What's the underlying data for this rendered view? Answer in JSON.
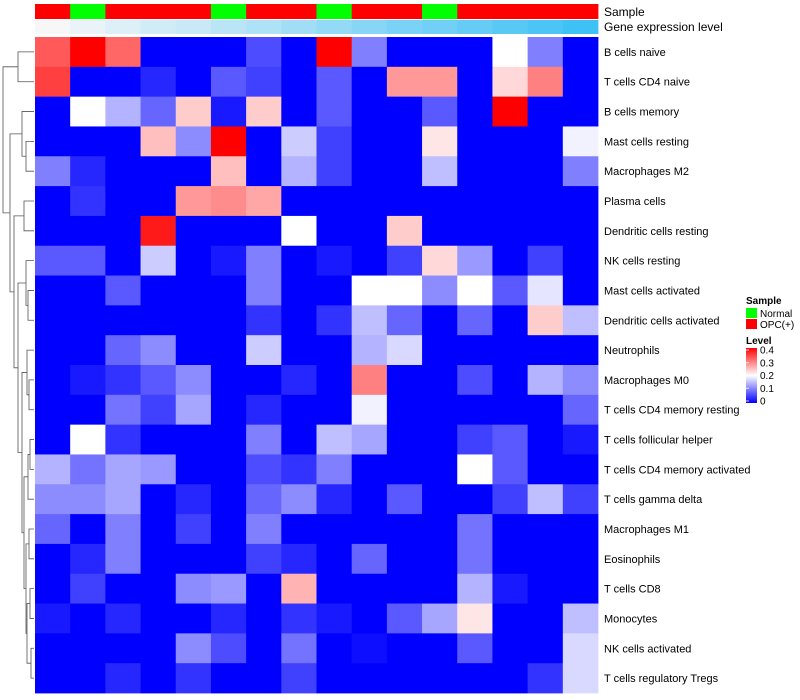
{
  "chart_data": {
    "type": "heatmap",
    "title": "",
    "annotation_labels": {
      "sample": "Sample",
      "gene_expression": "Gene expression level"
    },
    "columns": [
      {
        "sample": "OPC(+)",
        "expression_level": 0.0
      },
      {
        "sample": "Normal",
        "expression_level": 0.03
      },
      {
        "sample": "OPC(+)",
        "expression_level": 0.06
      },
      {
        "sample": "OPC(+)",
        "expression_level": 0.09
      },
      {
        "sample": "OPC(+)",
        "expression_level": 0.11
      },
      {
        "sample": "Normal",
        "expression_level": 0.14
      },
      {
        "sample": "OPC(+)",
        "expression_level": 0.17
      },
      {
        "sample": "OPC(+)",
        "expression_level": 0.2
      },
      {
        "sample": "Normal",
        "expression_level": 0.23
      },
      {
        "sample": "OPC(+)",
        "expression_level": 0.26
      },
      {
        "sample": "OPC(+)",
        "expression_level": 0.29
      },
      {
        "sample": "Normal",
        "expression_level": 0.31
      },
      {
        "sample": "OPC(+)",
        "expression_level": 0.34
      },
      {
        "sample": "OPC(+)",
        "expression_level": 0.37
      },
      {
        "sample": "OPC(+)",
        "expression_level": 0.4
      },
      {
        "sample": "OPC(+)",
        "expression_level": 0.43
      }
    ],
    "rows": [
      "B cells naive",
      "T cells CD4 naive",
      "B cells memory",
      "Mast cells resting",
      "Macrophages M2",
      "Plasma cells",
      "Dendritic cells resting",
      "NK cells resting",
      "Mast cells activated",
      "Dendritic cells activated",
      "Neutrophils",
      "Macrophages M0",
      "T cells CD4 memory resting",
      "T cells follicular helper",
      "T cells CD4 memory activated",
      "T cells gamma delta",
      "Macrophages M1",
      "Eosinophils",
      "T cells CD8",
      "Monocytes",
      "NK cells activated",
      "T cells regulatory  Tregs"
    ],
    "values": [
      [
        0.33,
        0.4,
        0.32,
        0,
        0,
        0,
        0.06,
        0,
        0.4,
        0.1,
        0,
        0,
        0,
        0.2,
        0.1,
        0
      ],
      [
        0.35,
        0,
        0,
        0.03,
        0,
        0.07,
        0.05,
        0,
        0.07,
        0,
        0.28,
        0.28,
        0,
        0.23,
        0.3,
        0
      ],
      [
        0,
        0.2,
        0.14,
        0.08,
        0.24,
        0.02,
        0.24,
        0,
        0.07,
        0,
        0,
        0.07,
        0,
        0.4,
        0,
        0
      ],
      [
        0,
        0,
        0,
        0.25,
        0.11,
        0.4,
        0,
        0.16,
        0.05,
        0,
        0,
        0.22,
        0,
        0,
        0,
        0.19
      ],
      [
        0.1,
        0.03,
        0,
        0,
        0,
        0.25,
        0,
        0.14,
        0.05,
        0,
        0,
        0.15,
        0,
        0,
        0,
        0.1
      ],
      [
        0,
        0.04,
        0,
        0,
        0.28,
        0.29,
        0.27,
        0,
        0,
        0,
        0,
        0,
        0,
        0,
        0,
        0
      ],
      [
        0,
        0,
        0,
        0.38,
        0,
        0,
        0,
        0.2,
        0,
        0,
        0.24,
        0,
        0,
        0,
        0,
        0
      ],
      [
        0.07,
        0.07,
        0,
        0.16,
        0,
        0.02,
        0.1,
        0,
        0.02,
        0,
        0.05,
        0.23,
        0.12,
        0,
        0.05,
        0
      ],
      [
        0,
        0,
        0.07,
        0,
        0,
        0,
        0.1,
        0,
        0,
        0.2,
        0.2,
        0.11,
        0.2,
        0.07,
        0.18,
        0
      ],
      [
        0,
        0,
        0,
        0,
        0,
        0,
        0.04,
        0,
        0.04,
        0.15,
        0.08,
        0,
        0.08,
        0,
        0.24,
        0.15
      ],
      [
        0,
        0,
        0.08,
        0.11,
        0,
        0,
        0.16,
        0,
        0,
        0.14,
        0.17,
        0,
        0,
        0,
        0,
        0
      ],
      [
        0,
        0.02,
        0.04,
        0.07,
        0.11,
        0,
        0,
        0.03,
        0,
        0.3,
        0,
        0,
        0.06,
        0,
        0.14,
        0.11
      ],
      [
        0,
        0,
        0.09,
        0.05,
        0.13,
        0,
        0.03,
        0,
        0,
        0.19,
        0,
        0,
        0,
        0,
        0,
        0.08
      ],
      [
        0,
        0.2,
        0.04,
        0,
        0,
        0,
        0.1,
        0,
        0.15,
        0.13,
        0,
        0,
        0.05,
        0.07,
        0,
        0.02
      ],
      [
        0.14,
        0.09,
        0.13,
        0.12,
        0,
        0,
        0.06,
        0.04,
        0.1,
        0,
        0,
        0,
        0.2,
        0.07,
        0,
        0
      ],
      [
        0.11,
        0.11,
        0.13,
        0,
        0.03,
        0,
        0.08,
        0.11,
        0.03,
        0,
        0.07,
        0,
        0,
        0.05,
        0.15,
        0.05
      ],
      [
        0.08,
        0,
        0.1,
        0,
        0.05,
        0,
        0.1,
        0,
        0,
        0,
        0,
        0,
        0.09,
        0,
        0,
        0
      ],
      [
        0,
        0.03,
        0.1,
        0,
        0,
        0,
        0.05,
        0.03,
        0,
        0.08,
        0,
        0,
        0.09,
        0,
        0,
        0
      ],
      [
        0,
        0.05,
        0,
        0,
        0.11,
        0.12,
        0,
        0.26,
        0,
        0,
        0,
        0,
        0.14,
        0.02,
        0,
        0
      ],
      [
        0.02,
        0,
        0.03,
        0,
        0,
        0.03,
        0,
        0.04,
        0.02,
        0,
        0.07,
        0.13,
        0.22,
        0,
        0,
        0.15
      ],
      [
        0,
        0,
        0,
        0,
        0.11,
        0.06,
        0,
        0.09,
        0,
        0.01,
        0,
        0,
        0.07,
        0,
        0,
        0.17
      ],
      [
        0,
        0,
        0.03,
        0,
        0.04,
        0,
        0,
        0.05,
        0,
        0,
        0,
        0,
        0,
        0,
        0.04,
        0.17
      ]
    ],
    "legend": {
      "sample_title": "Sample",
      "sample_entries": [
        {
          "label": "Normal",
          "color": "#00ff00"
        },
        {
          "label": "OPC(+)",
          "color": "#ff0000"
        }
      ],
      "level_title": "Level",
      "level_ticks": [
        "0.4",
        "0.3",
        "0.2",
        "0.1",
        "0"
      ]
    },
    "color_scale": {
      "low": "#0000ff",
      "mid": "#ffffff",
      "high": "#ff0000",
      "min": 0,
      "max": 0.4,
      "annotation_low": "#f7f7f7",
      "annotation_high": "#3ec1f5"
    },
    "dendrogram": "row clustering tree (left side)"
  }
}
